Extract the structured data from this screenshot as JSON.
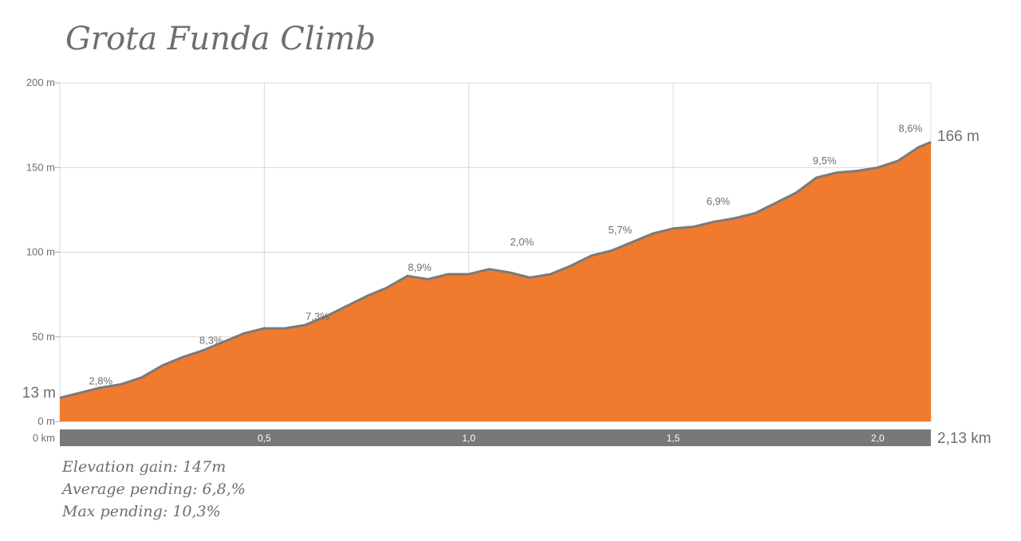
{
  "title": "Grota Funda Climb",
  "colors": {
    "fill": "#f07a2e",
    "line": "#7a7a7a",
    "grid": "#d9d9d9",
    "bar": "#787878"
  },
  "stats": {
    "gain": "Elevation gain: 147m",
    "avg": "Average pending: 6,8,%",
    "max": "Max pending: 10,3%"
  },
  "chart_data": {
    "type": "area",
    "title": "Grota Funda Climb",
    "xlim": [
      0,
      2.13
    ],
    "ylim": [
      0,
      200
    ],
    "y_ticks": [
      {
        "v": 0,
        "label": "0 m"
      },
      {
        "v": 50,
        "label": "50 m"
      },
      {
        "v": 100,
        "label": "100 m"
      },
      {
        "v": 150,
        "label": "150 m"
      },
      {
        "v": 200,
        "label": "200 m"
      }
    ],
    "x_ticks": [
      {
        "v": 0.5,
        "label": "0,5"
      },
      {
        "v": 1.0,
        "label": "1,0"
      },
      {
        "v": 1.5,
        "label": "1,5"
      },
      {
        "v": 2.0,
        "label": "2,0"
      }
    ],
    "x_start_label": "0 km",
    "x_end_label": "2,13 km",
    "start_elev_label": "13 m",
    "end_elev_label": "166 m",
    "grid": true,
    "x": [
      0,
      0.05,
      0.1,
      0.15,
      0.2,
      0.25,
      0.3,
      0.35,
      0.4,
      0.45,
      0.5,
      0.55,
      0.6,
      0.65,
      0.7,
      0.75,
      0.8,
      0.85,
      0.9,
      0.95,
      1.0,
      1.05,
      1.1,
      1.15,
      1.2,
      1.25,
      1.3,
      1.35,
      1.4,
      1.45,
      1.5,
      1.55,
      1.6,
      1.65,
      1.7,
      1.75,
      1.8,
      1.85,
      1.9,
      1.95,
      2.0,
      2.05,
      2.1,
      2.13
    ],
    "y": [
      14,
      17,
      20,
      22,
      26,
      33,
      38,
      42,
      47,
      52,
      55,
      55,
      57,
      62,
      68,
      74,
      79,
      86,
      84,
      87,
      87,
      90,
      88,
      85,
      87,
      92,
      98,
      101,
      106,
      111,
      114,
      115,
      118,
      120,
      123,
      129,
      135,
      144,
      147,
      148,
      150,
      154,
      162,
      165
    ],
    "segments": [
      {
        "x": 0.1,
        "y": 22,
        "label": "2,8%"
      },
      {
        "x": 0.37,
        "y": 46,
        "label": "8,3%"
      },
      {
        "x": 0.63,
        "y": 60,
        "label": "7,3%"
      },
      {
        "x": 0.88,
        "y": 89,
        "label": "8,9%"
      },
      {
        "x": 1.13,
        "y": 104,
        "label": "2,0%"
      },
      {
        "x": 1.37,
        "y": 111,
        "label": "5,7%"
      },
      {
        "x": 1.61,
        "y": 128,
        "label": "6,9%"
      },
      {
        "x": 1.87,
        "y": 152,
        "label": "9,5%"
      },
      {
        "x": 2.08,
        "y": 171,
        "label": "8,6%"
      }
    ]
  }
}
